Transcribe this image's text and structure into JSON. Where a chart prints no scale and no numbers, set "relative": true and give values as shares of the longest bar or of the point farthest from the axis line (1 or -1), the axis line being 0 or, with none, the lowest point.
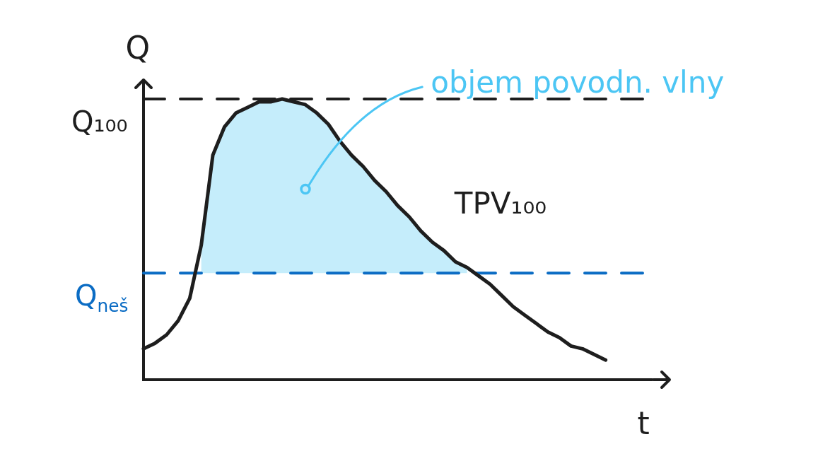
{
  "chart_data": {
    "type": "line",
    "xlabel": "t",
    "ylabel": "Q",
    "relative": true,
    "tick_labels": false,
    "marker": "none",
    "categories": [
      null,
      null,
      null,
      null,
      null,
      null,
      null,
      null,
      null,
      null,
      null,
      null,
      null,
      null,
      null,
      null,
      null,
      null,
      null,
      null,
      null,
      null,
      null,
      null,
      null,
      null,
      null,
      null,
      null,
      null,
      null,
      null,
      null,
      null,
      null,
      null,
      null,
      null,
      null,
      null,
      null,
      null,
      null,
      null,
      null
    ],
    "series": [
      {
        "name": "TPV₁₀₀",
        "color": "#1e1e1e",
        "values": [
          0.11,
          0.13,
          0.16,
          0.21,
          0.29,
          0.48,
          0.8,
          0.9,
          0.95,
          0.97,
          0.99,
          0.99,
          1,
          0.99,
          0.98,
          0.95,
          0.91,
          0.85,
          0.8,
          0.76,
          0.71,
          0.67,
          0.62,
          0.58,
          0.53,
          0.49,
          0.46,
          0.42,
          0.4,
          0.37,
          0.34,
          0.3,
          0.26,
          0.23,
          0.2,
          0.17,
          0.15,
          0.12,
          0.11,
          0.09,
          0.07,
          null,
          null,
          null,
          null
        ],
        "lower": [
          null,
          null,
          null,
          null,
          null,
          0.38,
          0.38,
          0.38,
          0.38,
          0.38,
          0.38,
          0.38,
          0.38,
          0.38,
          0.38,
          0.38,
          0.38,
          0.38,
          0.38,
          0.38,
          0.38,
          0.38,
          0.38,
          0.38,
          0.38,
          0.38,
          0.38,
          0.38,
          0.38,
          null,
          null,
          null,
          null,
          null,
          null,
          null,
          null,
          null,
          null,
          null,
          null,
          null,
          null,
          null,
          null
        ],
        "upper": [
          null,
          null,
          null,
          null,
          null,
          0.48,
          0.8,
          0.9,
          0.95,
          0.97,
          0.99,
          0.99,
          1,
          0.99,
          0.98,
          0.95,
          0.91,
          0.85,
          0.8,
          0.76,
          0.71,
          0.67,
          0.62,
          0.58,
          0.53,
          0.49,
          0.46,
          0.42,
          0.4,
          null,
          null,
          null,
          null,
          null,
          null,
          null,
          null,
          null,
          null,
          null,
          null,
          null,
          null,
          null,
          null
        ]
      }
    ],
    "ref_lines": [
      {
        "axis": "y",
        "value": 1,
        "label": "Q₁₀₀",
        "color": "#1e1e1e",
        "line_style": "dashed"
      },
      {
        "axis": "y",
        "value": 0.38,
        "label": "Q$_{neš}$",
        "color": "#0b6cc4",
        "line_style": "dashed"
      }
    ],
    "annotations": [
      "objem povodn. vlny"
    ]
  }
}
